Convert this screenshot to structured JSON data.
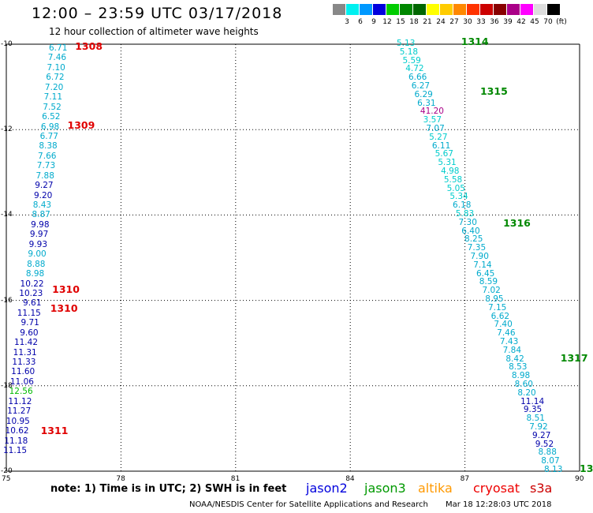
{
  "header": {
    "title": "12:00 – 23:59 UTC 03/17/2018",
    "subtitle": "12 hour collection of altimeter wave heights"
  },
  "colorbar": {
    "colors": [
      "#888888",
      "#00f0f0",
      "#0099ff",
      "#0000dd",
      "#00cc00",
      "#008800",
      "#006600",
      "#ffff00",
      "#ffcc00",
      "#ff8800",
      "#ff3300",
      "#cc0000",
      "#880000",
      "#aa0088",
      "#ff00ff",
      "#dddddd",
      "#000000"
    ],
    "labels": [
      "3",
      "6",
      "9",
      "12",
      "15",
      "18",
      "21",
      "24",
      "27",
      "30",
      "33",
      "36",
      "39",
      "42",
      "45",
      "70",
      "(ft)"
    ]
  },
  "map": {
    "x_ticks": [
      "75",
      "78",
      "81",
      "84",
      "87",
      "90"
    ],
    "y_ticks": [
      "-10",
      "-12",
      "-14",
      "-16",
      "-18",
      "-20"
    ],
    "lon_range": [
      75,
      90
    ],
    "lat_range": [
      -10,
      -20
    ]
  },
  "tracks": [
    {
      "id": "1308",
      "color": "#e00000",
      "lon": 76.8,
      "lat": -10.05
    },
    {
      "id": "1309",
      "color": "#e00000",
      "lon": 76.6,
      "lat": -11.9
    },
    {
      "id": "1310",
      "color": "#e00000",
      "lon": 76.2,
      "lat": -15.75
    },
    {
      "id": "1310",
      "color": "#e00000",
      "lon": 76.15,
      "lat": -16.2
    },
    {
      "id": "1311",
      "color": "#e00000",
      "lon": 75.9,
      "lat": -19.05
    },
    {
      "id": "1314",
      "color": "#008800",
      "lon": 86.9,
      "lat": -9.95
    },
    {
      "id": "1315",
      "color": "#008800",
      "lon": 87.4,
      "lat": -11.1
    },
    {
      "id": "1316",
      "color": "#008800",
      "lon": 88.0,
      "lat": -14.2
    },
    {
      "id": "1317",
      "color": "#008800",
      "lon": 89.5,
      "lat": -17.35
    },
    {
      "id": "13",
      "color": "#008800",
      "lon": 90.0,
      "lat": -19.95
    }
  ],
  "west_pass": [
    {
      "v": "6.71",
      "c": "#00aacc"
    },
    {
      "v": "7.46",
      "c": "#00aacc"
    },
    {
      "v": "7.10",
      "c": "#00aacc"
    },
    {
      "v": "6.72",
      "c": "#00aacc"
    },
    {
      "v": "7.20",
      "c": "#00aacc"
    },
    {
      "v": "7.11",
      "c": "#00aacc"
    },
    {
      "v": "7.52",
      "c": "#00aacc"
    },
    {
      "v": "6.52",
      "c": "#00aacc"
    },
    {
      "v": "6.98",
      "c": "#00aacc"
    },
    {
      "v": "6.77",
      "c": "#00aacc"
    },
    {
      "v": "8.38",
      "c": "#00aacc"
    },
    {
      "v": "7.66",
      "c": "#00aacc"
    },
    {
      "v": "7.73",
      "c": "#00aacc"
    },
    {
      "v": "7.88",
      "c": "#00aacc"
    },
    {
      "v": "9.27",
      "c": "#0000aa"
    },
    {
      "v": "9.20",
      "c": "#0000aa"
    },
    {
      "v": "8.43",
      "c": "#00aacc"
    },
    {
      "v": "8.87",
      "c": "#00aacc"
    },
    {
      "v": "9.98",
      "c": "#0000aa"
    },
    {
      "v": "9.97",
      "c": "#0000aa"
    },
    {
      "v": "9.93",
      "c": "#0000aa"
    },
    {
      "v": "9.00",
      "c": "#00aacc"
    },
    {
      "v": "8.88",
      "c": "#00aacc"
    },
    {
      "v": "8.98",
      "c": "#00aacc"
    },
    {
      "v": "10.22",
      "c": "#0000aa"
    },
    {
      "v": "10.23",
      "c": "#0000aa"
    },
    {
      "v": "9.61",
      "c": "#0000aa"
    },
    {
      "v": "11.15",
      "c": "#0000aa"
    },
    {
      "v": "9.71",
      "c": "#0000aa"
    },
    {
      "v": "9.60",
      "c": "#0000aa"
    },
    {
      "v": "11.42",
      "c": "#0000aa"
    },
    {
      "v": "11.31",
      "c": "#0000aa"
    },
    {
      "v": "11.33",
      "c": "#0000aa"
    },
    {
      "v": "11.60",
      "c": "#0000aa"
    },
    {
      "v": "11.06",
      "c": "#0000aa"
    },
    {
      "v": "12.56",
      "c": "#00bb00"
    },
    {
      "v": "11.12",
      "c": "#0000aa"
    },
    {
      "v": "11.27",
      "c": "#0000aa"
    },
    {
      "v": "10.95",
      "c": "#0000aa"
    },
    {
      "v": "10.62",
      "c": "#0000aa"
    },
    {
      "v": "11.18",
      "c": "#0000aa"
    },
    {
      "v": "11.15",
      "c": "#0000aa"
    }
  ],
  "east_pass": [
    {
      "v": "5.13",
      "c": "#00cccc"
    },
    {
      "v": "5.18",
      "c": "#00cccc"
    },
    {
      "v": "5.59",
      "c": "#00cccc"
    },
    {
      "v": "4.72",
      "c": "#00cccc"
    },
    {
      "v": "6.66",
      "c": "#00aacc"
    },
    {
      "v": "6.27",
      "c": "#00aacc"
    },
    {
      "v": "6.29",
      "c": "#00aacc"
    },
    {
      "v": "6.31",
      "c": "#00aacc"
    },
    {
      "v": "41.20",
      "c": "#aa0088"
    },
    {
      "v": "3.57",
      "c": "#00cccc"
    },
    {
      "v": "7.07",
      "c": "#00aacc"
    },
    {
      "v": "5.27",
      "c": "#00cccc"
    },
    {
      "v": "6.11",
      "c": "#00aacc"
    },
    {
      "v": "5.67",
      "c": "#00cccc"
    },
    {
      "v": "5.31",
      "c": "#00cccc"
    },
    {
      "v": "4.98",
      "c": "#00cccc"
    },
    {
      "v": "5.58",
      "c": "#00cccc"
    },
    {
      "v": "5.05",
      "c": "#00cccc"
    },
    {
      "v": "5.34",
      "c": "#00cccc"
    },
    {
      "v": "6.18",
      "c": "#00aacc"
    },
    {
      "v": "5.83",
      "c": "#00cccc"
    },
    {
      "v": "7.30",
      "c": "#00aacc"
    },
    {
      "v": "6.40",
      "c": "#00aacc"
    },
    {
      "v": "8.25",
      "c": "#00aacc"
    },
    {
      "v": "7.35",
      "c": "#00aacc"
    },
    {
      "v": "7.90",
      "c": "#00aacc"
    },
    {
      "v": "7.14",
      "c": "#00aacc"
    },
    {
      "v": "6.45",
      "c": "#00aacc"
    },
    {
      "v": "8.59",
      "c": "#00aacc"
    },
    {
      "v": "7.02",
      "c": "#00aacc"
    },
    {
      "v": "8.95",
      "c": "#00aacc"
    },
    {
      "v": "7.15",
      "c": "#00aacc"
    },
    {
      "v": "6.62",
      "c": "#00aacc"
    },
    {
      "v": "7.40",
      "c": "#00aacc"
    },
    {
      "v": "7.46",
      "c": "#00aacc"
    },
    {
      "v": "7.43",
      "c": "#00aacc"
    },
    {
      "v": "7.84",
      "c": "#00aacc"
    },
    {
      "v": "8.42",
      "c": "#00aacc"
    },
    {
      "v": "8.53",
      "c": "#00aacc"
    },
    {
      "v": "8.98",
      "c": "#00aacc"
    },
    {
      "v": "8.60",
      "c": "#00aacc"
    },
    {
      "v": "8.20",
      "c": "#00aacc"
    },
    {
      "v": "11.14",
      "c": "#0000aa"
    },
    {
      "v": "9.35",
      "c": "#0000aa"
    },
    {
      "v": "8.51",
      "c": "#00aacc"
    },
    {
      "v": "7.92",
      "c": "#00aacc"
    },
    {
      "v": "9.27",
      "c": "#0000aa"
    },
    {
      "v": "9.52",
      "c": "#0000aa"
    },
    {
      "v": "8.88",
      "c": "#00aacc"
    },
    {
      "v": "8.07",
      "c": "#00aacc"
    },
    {
      "v": "8.13",
      "c": "#00aacc"
    }
  ],
  "footer": {
    "note": "note:  1) Time is in UTC;  2) SWH is in feet",
    "satellites": [
      {
        "name": "jason2",
        "color": "#0000dd"
      },
      {
        "name": "jason3",
        "color": "#009900"
      },
      {
        "name": "altika",
        "color": "#ff9900"
      },
      {
        "name": "cryosat",
        "color": "#ee0000"
      },
      {
        "name": "s3a",
        "color": "#cc0000"
      }
    ],
    "credit": "NOAA/NESDIS Center for Satellite Applications and Research",
    "timestamp": "Mar 18 12:28:03 UTC 2018"
  }
}
